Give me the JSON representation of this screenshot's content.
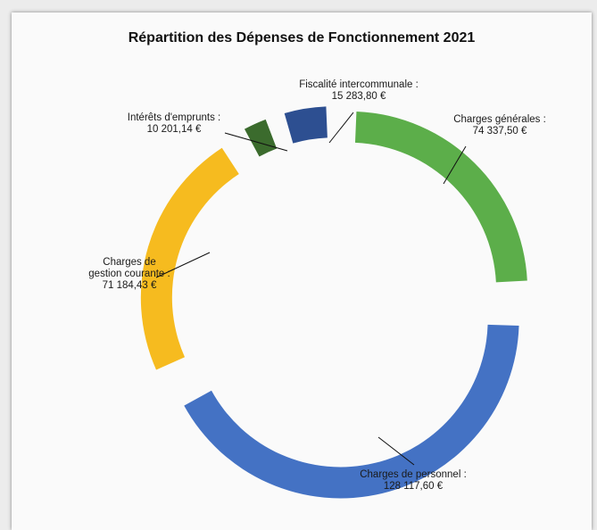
{
  "chart_data": {
    "type": "pie",
    "title": "Répartition des Dépenses de Fonctionnement 2021",
    "slices": [
      {
        "label_lines": [
          "Charges générales :",
          "74 337,50 €"
        ],
        "value": 74337.5,
        "color": "#5cae4a"
      },
      {
        "label_lines": [
          "Charges de personnel :",
          "128 117,60 €"
        ],
        "value": 128117.6,
        "color": "#4472c4"
      },
      {
        "label_lines": [
          "Charges de",
          "gestion courante :",
          "71 184,43 €"
        ],
        "value": 71184.43,
        "color": "#f6bb1f"
      },
      {
        "label_lines": [
          "Intérêts d'emprunts :",
          "10 201,14 €"
        ],
        "value": 10201.14,
        "color": "#3b6b2d"
      },
      {
        "label_lines": [
          "Fiscalité intercommunale :",
          "15 283,80 €"
        ],
        "value": 15283.8,
        "color": "#2d4f91"
      }
    ]
  }
}
